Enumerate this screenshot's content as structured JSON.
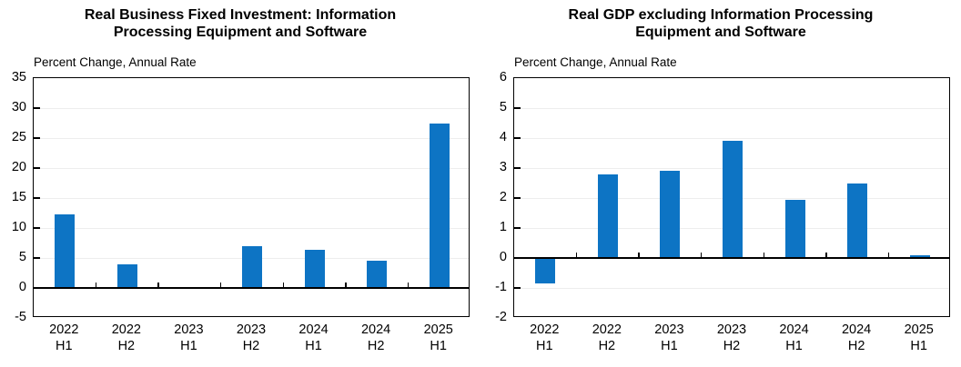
{
  "figure": {
    "background_color": "#ffffff",
    "text_color": "#000000",
    "axis_color": "#000000",
    "gridline_color": "#ededed",
    "bar_color": "#0d74c4"
  },
  "chart_data": [
    {
      "type": "bar",
      "title": "Real Business Fixed Investment: Information Processing Equipment and Software",
      "title_lines": [
        "Real Business Fixed Investment: Information",
        "Processing Equipment and Software"
      ],
      "subtitle": "Percent Change, Annual Rate",
      "categories": [
        "2022 H1",
        "2022 H2",
        "2023 H1",
        "2023 H2",
        "2024 H1",
        "2024 H2",
        "2025 H1"
      ],
      "values": [
        12.3,
        3.9,
        -0.1,
        7.0,
        6.3,
        4.5,
        27.4
      ],
      "xlabel": "",
      "ylabel": "Percent Change, Annual Rate",
      "ylim": [
        -5,
        35
      ],
      "ytick_step": 5,
      "ytick_labels": [
        "-5",
        "0",
        "5",
        "10",
        "15",
        "20",
        "25",
        "30",
        "35"
      ],
      "grid": true,
      "legend": false,
      "bar_color": "#0d74c4"
    },
    {
      "type": "bar",
      "title": "Real GDP excluding Information Processing Equipment and Software",
      "title_lines": [
        "Real GDP excluding Information Processing",
        "Equipment and Software"
      ],
      "subtitle": "Percent Change, Annual Rate",
      "categories": [
        "2022 H1",
        "2022 H2",
        "2023 H1",
        "2023 H2",
        "2024 H1",
        "2024 H2",
        "2025 H1"
      ],
      "values": [
        -0.85,
        2.8,
        2.9,
        3.9,
        1.95,
        2.5,
        0.1
      ],
      "xlabel": "",
      "ylabel": "Percent Change, Annual Rate",
      "ylim": [
        -2,
        6
      ],
      "ytick_step": 1,
      "ytick_labels": [
        "-2",
        "-1",
        "0",
        "1",
        "2",
        "3",
        "4",
        "5",
        "6"
      ],
      "grid": true,
      "legend": false,
      "bar_color": "#0d74c4"
    }
  ]
}
